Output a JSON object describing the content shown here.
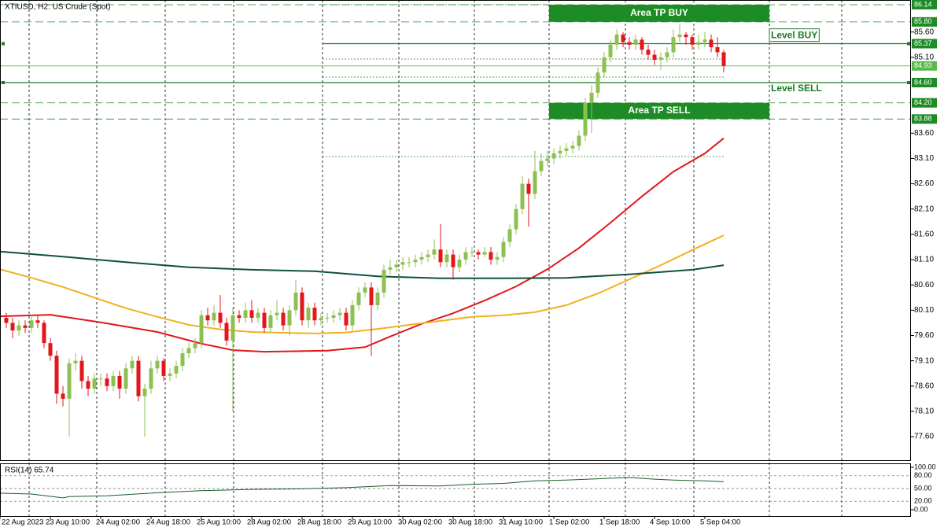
{
  "chart_data": {
    "type": "candlestick",
    "title": "XTIUSD, H2:  US Crude (Spot)",
    "up_color": "#8cc152",
    "down_color": "#e3161b",
    "xlim": [
      -1,
      143.75
    ],
    "ylim": [
      77.135,
      86.233
    ],
    "xticks": [
      {
        "value": -1,
        "label": "22 Aug 2023"
      },
      {
        "value": 7,
        "label": "23 Aug 10:00"
      },
      {
        "value": 15,
        "label": "24 Aug 02:00"
      },
      {
        "value": 23,
        "label": "24 Aug 18:00"
      },
      {
        "value": 31,
        "label": "25 Aug 10:00"
      },
      {
        "value": 39,
        "label": "28 Aug 02:00"
      },
      {
        "value": 47,
        "label": "28 Aug 18:00"
      },
      {
        "value": 55,
        "label": "29 Aug 10:00"
      },
      {
        "value": 63,
        "label": "30 Aug 02:00"
      },
      {
        "value": 71,
        "label": "30 Aug 18:00"
      },
      {
        "value": 79,
        "label": "31 Aug 10:00"
      },
      {
        "value": 87,
        "label": "1 Sep 02:00"
      },
      {
        "value": 95,
        "label": "1 Sep 18:00"
      },
      {
        "value": 103,
        "label": "4 Sep 10:00"
      },
      {
        "value": 111,
        "label": "5 Sep 04:00"
      }
    ],
    "yticks": [
      {
        "value": 85.6,
        "label": "85.60"
      },
      {
        "value": 85.1,
        "label": "85.10"
      },
      {
        "value": 83.6,
        "label": "83.60"
      },
      {
        "value": 83.1,
        "label": "83.10"
      },
      {
        "value": 82.6,
        "label": "82.60"
      },
      {
        "value": 82.1,
        "label": "82.10"
      },
      {
        "value": 81.6,
        "label": "81.60"
      },
      {
        "value": 81.1,
        "label": "81.10"
      },
      {
        "value": 80.6,
        "label": "80.60"
      },
      {
        "value": 80.1,
        "label": "80.10"
      },
      {
        "value": 79.6,
        "label": "79.60"
      },
      {
        "value": 79.1,
        "label": "79.10"
      },
      {
        "value": 78.6,
        "label": "78.60"
      },
      {
        "value": 78.1,
        "label": "78.10"
      },
      {
        "value": 77.6,
        "label": "77.60"
      }
    ],
    "ohlc": [
      [
        79.95,
        80.05,
        79.75,
        79.85
      ],
      [
        79.85,
        79.95,
        79.55,
        79.7
      ],
      [
        79.7,
        79.9,
        79.6,
        79.8
      ],
      [
        79.8,
        79.9,
        79.65,
        79.75
      ],
      [
        79.75,
        80.0,
        79.65,
        79.9
      ],
      [
        79.9,
        80.0,
        79.75,
        79.85
      ],
      [
        79.85,
        79.9,
        79.35,
        79.45
      ],
      [
        79.45,
        79.55,
        79.1,
        79.2
      ],
      [
        79.2,
        79.3,
        78.25,
        78.45
      ],
      [
        78.45,
        78.6,
        78.2,
        78.35
      ],
      [
        78.35,
        79.15,
        77.6,
        79.05
      ],
      [
        79.05,
        79.25,
        78.9,
        79.1
      ],
      [
        79.1,
        79.2,
        78.55,
        78.7
      ],
      [
        78.7,
        78.8,
        78.4,
        78.55
      ],
      [
        78.55,
        78.85,
        78.45,
        78.75
      ],
      [
        78.75,
        78.85,
        78.6,
        78.75
      ],
      [
        78.75,
        78.85,
        78.5,
        78.6
      ],
      [
        78.6,
        78.9,
        78.5,
        78.8
      ],
      [
        78.8,
        78.9,
        78.35,
        78.55
      ],
      [
        78.55,
        79.05,
        78.45,
        78.95
      ],
      [
        78.95,
        79.2,
        78.85,
        79.1
      ],
      [
        79.1,
        79.2,
        78.3,
        78.4
      ],
      [
        78.4,
        78.65,
        77.6,
        78.55
      ],
      [
        78.55,
        79.1,
        78.45,
        78.95
      ],
      [
        78.95,
        79.2,
        78.85,
        79.1
      ],
      [
        79.1,
        79.15,
        78.7,
        78.8
      ],
      [
        78.8,
        78.95,
        78.7,
        78.85
      ],
      [
        78.85,
        79.1,
        78.75,
        79.0
      ],
      [
        79.0,
        79.35,
        78.9,
        79.25
      ],
      [
        79.25,
        79.45,
        79.15,
        79.35
      ],
      [
        79.35,
        79.55,
        79.25,
        79.45
      ],
      [
        79.45,
        80.1,
        79.35,
        80.0
      ],
      [
        80.0,
        80.15,
        79.8,
        79.9
      ],
      [
        79.9,
        80.2,
        79.8,
        80.05
      ],
      [
        80.05,
        80.4,
        79.75,
        79.85
      ],
      [
        79.85,
        79.95,
        79.4,
        79.5
      ],
      [
        79.5,
        80.15,
        78.1,
        80.0
      ],
      [
        80.0,
        80.1,
        79.85,
        79.95
      ],
      [
        79.95,
        80.25,
        79.85,
        80.1
      ],
      [
        80.1,
        80.3,
        79.85,
        79.95
      ],
      [
        79.95,
        80.15,
        79.85,
        80.05
      ],
      [
        80.05,
        80.15,
        79.65,
        79.75
      ],
      [
        79.75,
        80.1,
        79.65,
        80.0
      ],
      [
        80.0,
        80.3,
        79.9,
        80.05
      ],
      [
        80.05,
        80.15,
        79.7,
        79.8
      ],
      [
        79.8,
        80.2,
        79.6,
        80.1
      ],
      [
        80.1,
        80.7,
        80.0,
        80.45
      ],
      [
        80.45,
        80.55,
        79.8,
        79.9
      ],
      [
        79.9,
        80.25,
        79.75,
        80.15
      ],
      [
        80.15,
        80.25,
        79.8,
        79.9
      ],
      [
        79.9,
        80.05,
        79.8,
        79.95
      ],
      [
        79.95,
        80.05,
        79.85,
        79.95
      ],
      [
        79.95,
        80.1,
        79.85,
        80.0
      ],
      [
        80.0,
        80.15,
        79.9,
        80.05
      ],
      [
        80.05,
        80.15,
        79.7,
        79.8
      ],
      [
        79.8,
        80.3,
        79.7,
        80.2
      ],
      [
        80.2,
        80.55,
        80.1,
        80.45
      ],
      [
        80.45,
        80.65,
        80.35,
        80.55
      ],
      [
        80.55,
        80.65,
        79.2,
        80.2
      ],
      [
        80.2,
        80.55,
        80.1,
        80.45
      ],
      [
        80.45,
        81.0,
        80.35,
        80.9
      ],
      [
        80.9,
        81.1,
        80.8,
        80.95
      ],
      [
        80.95,
        81.1,
        80.85,
        81.0
      ],
      [
        81.0,
        81.15,
        80.9,
        81.05
      ],
      [
        81.05,
        81.15,
        80.95,
        81.05
      ],
      [
        81.05,
        81.2,
        80.95,
        81.1
      ],
      [
        81.1,
        81.25,
        81.0,
        81.15
      ],
      [
        81.15,
        81.3,
        81.05,
        81.2
      ],
      [
        81.2,
        81.5,
        81.1,
        81.3
      ],
      [
        81.3,
        81.8,
        80.95,
        81.05
      ],
      [
        81.05,
        81.3,
        80.95,
        81.2
      ],
      [
        81.2,
        81.3,
        80.7,
        80.95
      ],
      [
        80.95,
        81.2,
        80.85,
        81.1
      ],
      [
        81.1,
        81.35,
        81.0,
        81.25
      ],
      [
        81.25,
        81.35,
        81.15,
        81.25
      ],
      [
        81.25,
        81.3,
        81.1,
        81.2
      ],
      [
        81.2,
        81.35,
        81.15,
        81.25
      ],
      [
        81.25,
        81.35,
        81.0,
        81.1
      ],
      [
        81.1,
        81.25,
        81.0,
        81.15
      ],
      [
        81.15,
        81.55,
        81.05,
        81.45
      ],
      [
        81.45,
        81.8,
        81.35,
        81.7
      ],
      [
        81.7,
        82.2,
        81.6,
        82.1
      ],
      [
        82.1,
        82.75,
        82.0,
        82.6
      ],
      [
        82.6,
        82.7,
        81.75,
        82.4
      ],
      [
        82.4,
        83.25,
        82.3,
        82.85
      ],
      [
        82.85,
        83.2,
        82.75,
        83.05
      ],
      [
        83.05,
        83.25,
        82.95,
        83.1
      ],
      [
        83.1,
        83.3,
        83.0,
        83.2
      ],
      [
        83.2,
        83.35,
        83.1,
        83.25
      ],
      [
        83.25,
        83.4,
        83.15,
        83.3
      ],
      [
        83.3,
        83.45,
        83.2,
        83.35
      ],
      [
        83.35,
        83.65,
        83.25,
        83.55
      ],
      [
        83.55,
        84.3,
        83.45,
        84.2
      ],
      [
        84.2,
        84.55,
        83.6,
        84.4
      ],
      [
        84.4,
        84.9,
        84.3,
        84.8
      ],
      [
        84.8,
        85.2,
        84.7,
        85.1
      ],
      [
        85.1,
        85.45,
        85.0,
        85.35
      ],
      [
        85.35,
        85.65,
        85.25,
        85.55
      ],
      [
        85.55,
        85.6,
        85.3,
        85.4
      ],
      [
        85.4,
        85.5,
        85.25,
        85.35
      ],
      [
        85.35,
        85.55,
        85.25,
        85.45
      ],
      [
        85.45,
        85.5,
        85.15,
        85.25
      ],
      [
        85.25,
        85.35,
        85.05,
        85.15
      ],
      [
        85.15,
        85.25,
        84.95,
        85.05
      ],
      [
        85.05,
        85.2,
        84.85,
        85.1
      ],
      [
        85.1,
        85.3,
        85.0,
        85.2
      ],
      [
        85.2,
        85.65,
        85.1,
        85.5
      ],
      [
        85.5,
        85.75,
        85.4,
        85.55
      ],
      [
        85.55,
        85.6,
        85.35,
        85.5
      ],
      [
        85.5,
        85.55,
        85.25,
        85.35
      ],
      [
        85.35,
        85.55,
        85.25,
        85.4
      ],
      [
        85.4,
        85.6,
        85.3,
        85.45
      ],
      [
        85.45,
        85.55,
        85.2,
        85.3
      ],
      [
        85.3,
        85.5,
        85.1,
        85.2
      ],
      [
        85.2,
        85.25,
        84.8,
        84.93
      ]
    ],
    "series": [
      {
        "color": "#e0181c",
        "x": [
          -1,
          7,
          15,
          24,
          31,
          36,
          41,
          51,
          57,
          61,
          66,
          71,
          76,
          81,
          86,
          91,
          96,
          101,
          106,
          111,
          114
        ],
        "values": [
          79.98,
          80.01,
          79.86,
          79.67,
          79.44,
          79.31,
          79.28,
          79.3,
          79.37,
          79.58,
          79.83,
          80.04,
          80.29,
          80.57,
          80.91,
          81.33,
          81.83,
          82.35,
          82.84,
          83.2,
          83.5
        ]
      },
      {
        "color": "#f2b01e",
        "x": [
          -1,
          4,
          9,
          14,
          19,
          24,
          29,
          34,
          39,
          49,
          54,
          59,
          64,
          69,
          74,
          79,
          84,
          89,
          94,
          99,
          104,
          109,
          114
        ],
        "values": [
          80.91,
          80.74,
          80.56,
          80.35,
          80.14,
          79.97,
          79.81,
          79.72,
          79.67,
          79.64,
          79.66,
          79.73,
          79.81,
          79.89,
          79.97,
          80.0,
          80.06,
          80.2,
          80.43,
          80.71,
          80.99,
          81.29,
          81.58
        ]
      },
      {
        "color": "#10503a",
        "x": [
          -1,
          9,
          19,
          29,
          39,
          49,
          59,
          69,
          79,
          89,
          99,
          109,
          114
        ],
        "values": [
          81.26,
          81.16,
          81.05,
          80.95,
          80.9,
          80.87,
          80.77,
          80.73,
          80.73,
          80.74,
          80.81,
          80.9,
          80.99
        ]
      }
    ],
    "areas": [
      {
        "label": "Area TP BUY",
        "from": 85.8,
        "to": 86.14,
        "color": "#1e8c26"
      },
      {
        "label": "Area TP SELL",
        "from": 83.88,
        "to": 84.2,
        "color": "#1e8c26"
      }
    ],
    "levels": [
      {
        "label": "Level BUY",
        "value": 85.37,
        "color": "#1e7a22"
      },
      {
        "label": "Level SELL",
        "value": 84.6,
        "color": "#1e7a22"
      }
    ],
    "current_price": {
      "value": 84.93,
      "color": "#6fbf5a"
    },
    "price_labels": [
      {
        "value": 86.14,
        "label": "86.14",
        "color": "#1e8c26"
      },
      {
        "value": 85.8,
        "label": "85.80",
        "color": "#1e8c26"
      },
      {
        "value": 85.37,
        "label": "85.37",
        "color": "#1e8c26"
      },
      {
        "value": 84.93,
        "label": "84.93",
        "color": "#5bb84a"
      },
      {
        "value": 84.6,
        "label": "84.60",
        "color": "#1e8c26"
      },
      {
        "value": 84.2,
        "label": "84.20",
        "color": "#1e8c26"
      },
      {
        "value": 83.88,
        "label": "83.88",
        "color": "#1e8c26"
      }
    ],
    "rsi": {
      "label": "RSI(14) 65.74",
      "color": "#1a5c2a",
      "ylim": [
        -16.67,
        107.41
      ],
      "yticks": [
        {
          "value": 100,
          "label": "100.00"
        },
        {
          "value": 80,
          "label": "80.00"
        },
        {
          "value": 50,
          "label": "50.00"
        },
        {
          "value": 20,
          "label": "20.00"
        },
        {
          "value": 0,
          "label": "0.00"
        }
      ],
      "x": [
        -1,
        4,
        9,
        10,
        16,
        24,
        31,
        39,
        46,
        54,
        61,
        69,
        74,
        79,
        84,
        89,
        94,
        99,
        103,
        106,
        111,
        114
      ],
      "values": [
        39,
        37,
        28,
        31,
        33,
        40,
        45,
        48,
        49,
        52,
        57,
        56,
        60,
        62,
        68,
        70,
        73,
        76,
        72,
        70,
        68,
        66
      ]
    }
  }
}
